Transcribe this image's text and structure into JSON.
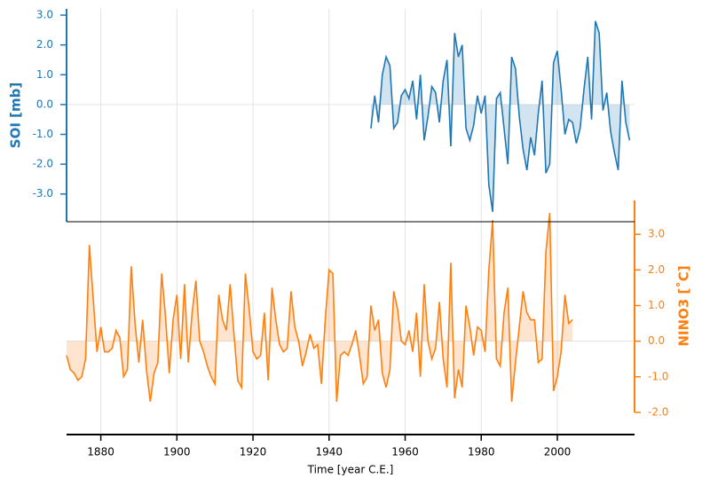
{
  "chart_data": [
    {
      "type": "line",
      "ylabel": "SOI [mb]",
      "color": "#1f77b4",
      "fill_to_zero": true,
      "xlim": [
        1871,
        2020.3
      ],
      "ylim": [
        -3.93,
        3.21
      ],
      "yticks": [
        {
          "value": -3,
          "label": "-3.0"
        },
        {
          "value": -2,
          "label": "-2.0"
        },
        {
          "value": -1,
          "label": "-1.0"
        },
        {
          "value": 0,
          "label": "0.0"
        },
        {
          "value": 1,
          "label": "1.0"
        },
        {
          "value": 2,
          "label": "2.0"
        },
        {
          "value": 3,
          "label": "3.0"
        }
      ],
      "x": [
        1951,
        1952,
        1953,
        1954,
        1955,
        1956,
        1957,
        1958,
        1959,
        1960,
        1961,
        1962,
        1963,
        1964,
        1965,
        1966,
        1967,
        1968,
        1969,
        1970,
        1971,
        1972,
        1973,
        1974,
        1975,
        1976,
        1977,
        1978,
        1979,
        1980,
        1981,
        1982,
        1983,
        1984,
        1985,
        1986,
        1987,
        1988,
        1989,
        1990,
        1991,
        1992,
        1993,
        1994,
        1995,
        1996,
        1997,
        1998,
        1999,
        2000,
        2001,
        2002,
        2003,
        2004,
        2005,
        2006,
        2007,
        2008,
        2009,
        2010,
        2011,
        2012,
        2013,
        2014,
        2015,
        2016,
        2017,
        2018,
        2019
      ],
      "values": [
        -0.8,
        0.3,
        -0.6,
        1.0,
        1.6,
        1.3,
        -0.8,
        -0.6,
        0.3,
        0.5,
        0.2,
        0.8,
        -0.5,
        1.0,
        -1.2,
        -0.4,
        0.6,
        0.4,
        -0.6,
        0.8,
        1.5,
        -1.4,
        2.4,
        1.6,
        2.0,
        -0.8,
        -1.2,
        -0.7,
        0.3,
        -0.3,
        0.3,
        -2.7,
        -3.6,
        0.2,
        0.4,
        -0.8,
        -2.0,
        1.6,
        1.2,
        -0.4,
        -1.5,
        -2.2,
        -1.1,
        -1.7,
        -0.3,
        0.8,
        -2.3,
        -2.0,
        1.4,
        1.8,
        0.5,
        -1.0,
        -0.5,
        -0.6,
        -1.3,
        -0.8,
        0.5,
        1.6,
        -0.5,
        2.8,
        2.4,
        -0.2,
        0.4,
        -0.9,
        -1.6,
        -2.2,
        0.8,
        -0.6,
        -1.2
      ]
    },
    {
      "type": "line",
      "ylabel": "NINO3 [˚C]",
      "xlabel": "Time [year C.E.]",
      "color": "#ff7f0e",
      "fill_to_zero": true,
      "xlim": [
        1871,
        2020.3
      ],
      "xticks": [
        1880,
        1900,
        1920,
        1940,
        1960,
        1980,
        2000
      ],
      "ylim": [
        -2.0,
        3.95
      ],
      "yticks": [
        {
          "value": -2,
          "label": "-2.0"
        },
        {
          "value": -1,
          "label": "-1.0"
        },
        {
          "value": 0,
          "label": "0.0"
        },
        {
          "value": 1,
          "label": "1.0"
        },
        {
          "value": 2,
          "label": "2.0"
        },
        {
          "value": 3,
          "label": "3.0"
        }
      ],
      "x": [
        1871,
        1872,
        1873,
        1874,
        1875,
        1876,
        1877,
        1878,
        1879,
        1880,
        1881,
        1882,
        1883,
        1884,
        1885,
        1886,
        1887,
        1888,
        1889,
        1890,
        1891,
        1892,
        1893,
        1894,
        1895,
        1896,
        1897,
        1898,
        1899,
        1900,
        1901,
        1902,
        1903,
        1904,
        1905,
        1906,
        1907,
        1908,
        1909,
        1910,
        1911,
        1912,
        1913,
        1914,
        1915,
        1916,
        1917,
        1918,
        1919,
        1920,
        1921,
        1922,
        1923,
        1924,
        1925,
        1926,
        1927,
        1928,
        1929,
        1930,
        1931,
        1932,
        1933,
        1934,
        1935,
        1936,
        1937,
        1938,
        1939,
        1940,
        1941,
        1942,
        1943,
        1944,
        1945,
        1946,
        1947,
        1948,
        1949,
        1950,
        1951,
        1952,
        1953,
        1954,
        1955,
        1956,
        1957,
        1958,
        1959,
        1960,
        1961,
        1962,
        1963,
        1964,
        1965,
        1966,
        1967,
        1968,
        1969,
        1970,
        1971,
        1972,
        1973,
        1974,
        1975,
        1976,
        1977,
        1978,
        1979,
        1980,
        1981,
        1982,
        1983,
        1984,
        1985,
        1986,
        1987,
        1988,
        1989,
        1990,
        1991,
        1992,
        1993,
        1994,
        1995,
        1996,
        1997,
        1998,
        1999,
        2000,
        2001,
        2002,
        2003,
        2004
      ],
      "values": [
        -0.4,
        -0.8,
        -0.9,
        -1.1,
        -1.0,
        -0.5,
        2.7,
        1.2,
        -0.3,
        0.4,
        -0.3,
        -0.3,
        -0.2,
        0.3,
        0.1,
        -1.0,
        -0.8,
        2.1,
        0.5,
        -0.6,
        0.6,
        -0.8,
        -1.7,
        -0.9,
        -0.6,
        1.9,
        0.7,
        -0.9,
        0.6,
        1.3,
        -0.5,
        1.6,
        -0.6,
        0.8,
        1.7,
        0.0,
        -0.3,
        -0.7,
        -1.0,
        -1.2,
        1.3,
        0.6,
        0.3,
        1.6,
        0.2,
        -1.1,
        -1.3,
        1.9,
        0.9,
        -0.3,
        -0.5,
        -0.4,
        0.8,
        -1.1,
        1.5,
        0.6,
        -0.1,
        -0.3,
        -0.2,
        1.4,
        0.4,
        0.0,
        -0.7,
        -0.3,
        0.2,
        -0.2,
        -0.1,
        -1.2,
        0.6,
        2.0,
        1.9,
        -1.7,
        -0.4,
        -0.3,
        -0.4,
        -0.1,
        0.3,
        -0.4,
        -1.2,
        -1.0,
        1.0,
        0.3,
        0.6,
        -0.9,
        -1.3,
        -0.8,
        1.4,
        0.9,
        0.0,
        -0.1,
        0.3,
        -0.3,
        0.8,
        -1.0,
        1.6,
        0.0,
        -0.5,
        -0.2,
        1.1,
        -0.5,
        -1.3,
        2.2,
        -1.6,
        -0.8,
        -1.3,
        1.0,
        0.4,
        -0.4,
        0.4,
        0.3,
        -0.3,
        2.0,
        3.4,
        -0.5,
        -0.7,
        0.8,
        1.5,
        -1.7,
        -0.6,
        0.4,
        1.4,
        0.8,
        0.6,
        0.6,
        -0.6,
        -0.5,
        2.5,
        3.6,
        -1.4,
        -1.0,
        -0.3,
        1.3,
        0.5,
        0.6
      ]
    }
  ]
}
